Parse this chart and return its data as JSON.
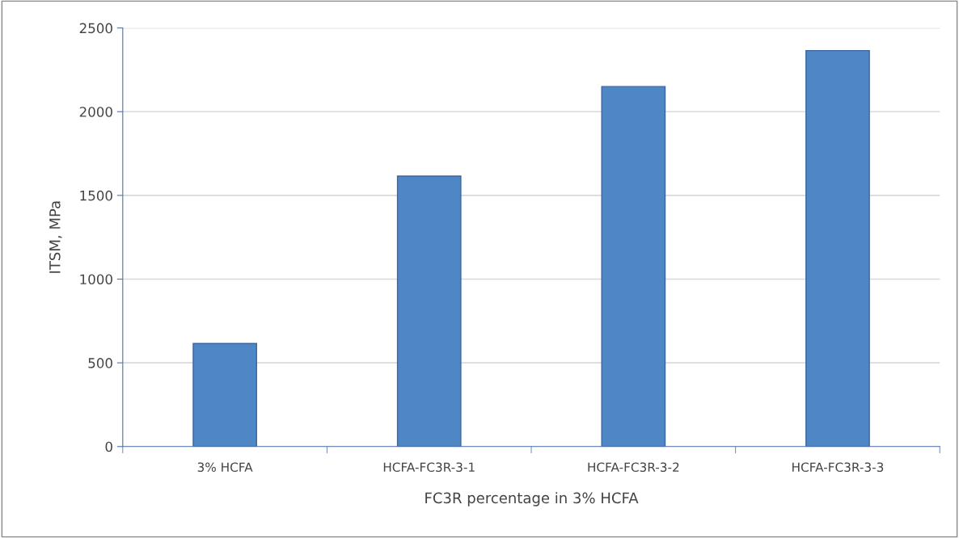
{
  "chart_data": {
    "type": "bar",
    "xlabel": "FC3R percentage in 3% HCFA",
    "ylabel": "ITSM, MPa",
    "categories": [
      "3% HCFA",
      "HCFA-FC3R-3-1",
      "HCFA-FC3R-3-2",
      "HCFA-FC3R-3-3"
    ],
    "values": [
      615,
      1615,
      2150,
      2365
    ],
    "color": "#4f86c6",
    "ylim": [
      0,
      2500
    ],
    "yticks": [
      0,
      500,
      1000,
      1500,
      2000,
      2500
    ],
    "grid": "y"
  }
}
